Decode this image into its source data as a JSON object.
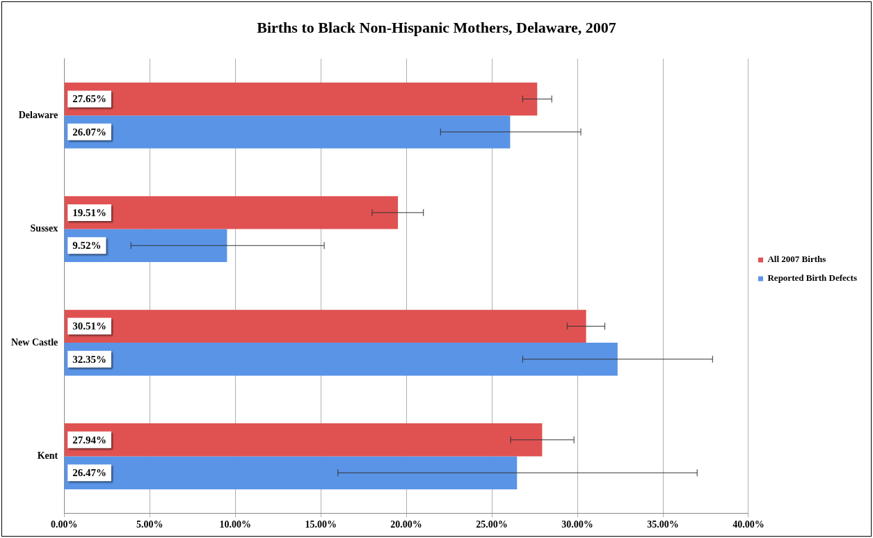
{
  "chart_data": {
    "type": "bar",
    "orientation": "horizontal",
    "title": "Births to Black Non-Hispanic Mothers, Delaware, 2007",
    "categories": [
      "Delaware",
      "Sussex",
      "New Castle",
      "Kent"
    ],
    "series": [
      {
        "name": "All 2007 Births",
        "color": "#e05252",
        "values": [
          27.65,
          19.51,
          30.51,
          27.94
        ],
        "value_labels": [
          "27.65%",
          "19.51%",
          "30.51%",
          "27.94%"
        ],
        "errors": [
          [
            26.8,
            28.5
          ],
          [
            18.0,
            21.0
          ],
          [
            29.4,
            31.6
          ],
          [
            26.1,
            29.8
          ]
        ]
      },
      {
        "name": "Reported Birth Defects",
        "color": "#5a94e6",
        "values": [
          26.07,
          9.52,
          32.35,
          26.47
        ],
        "value_labels": [
          "26.07%",
          "9.52%",
          "32.35%",
          "26.47%"
        ],
        "errors": [
          [
            22.0,
            30.2
          ],
          [
            3.9,
            15.2
          ],
          [
            26.8,
            37.9
          ],
          [
            16.0,
            37.0
          ]
        ]
      }
    ],
    "xlim": [
      0,
      40
    ],
    "xticks": [
      {
        "value": 0,
        "label": "0.00%"
      },
      {
        "value": 5,
        "label": "5.00%"
      },
      {
        "value": 10,
        "label": "10.00%"
      },
      {
        "value": 15,
        "label": "15.00%"
      },
      {
        "value": 20,
        "label": "20.00%"
      },
      {
        "value": 25,
        "label": "25.00%"
      },
      {
        "value": 30,
        "label": "30.00%"
      },
      {
        "value": 35,
        "label": "35.00%"
      },
      {
        "value": 40,
        "label": "40.00%"
      }
    ],
    "grid": "x",
    "legend": "right"
  }
}
